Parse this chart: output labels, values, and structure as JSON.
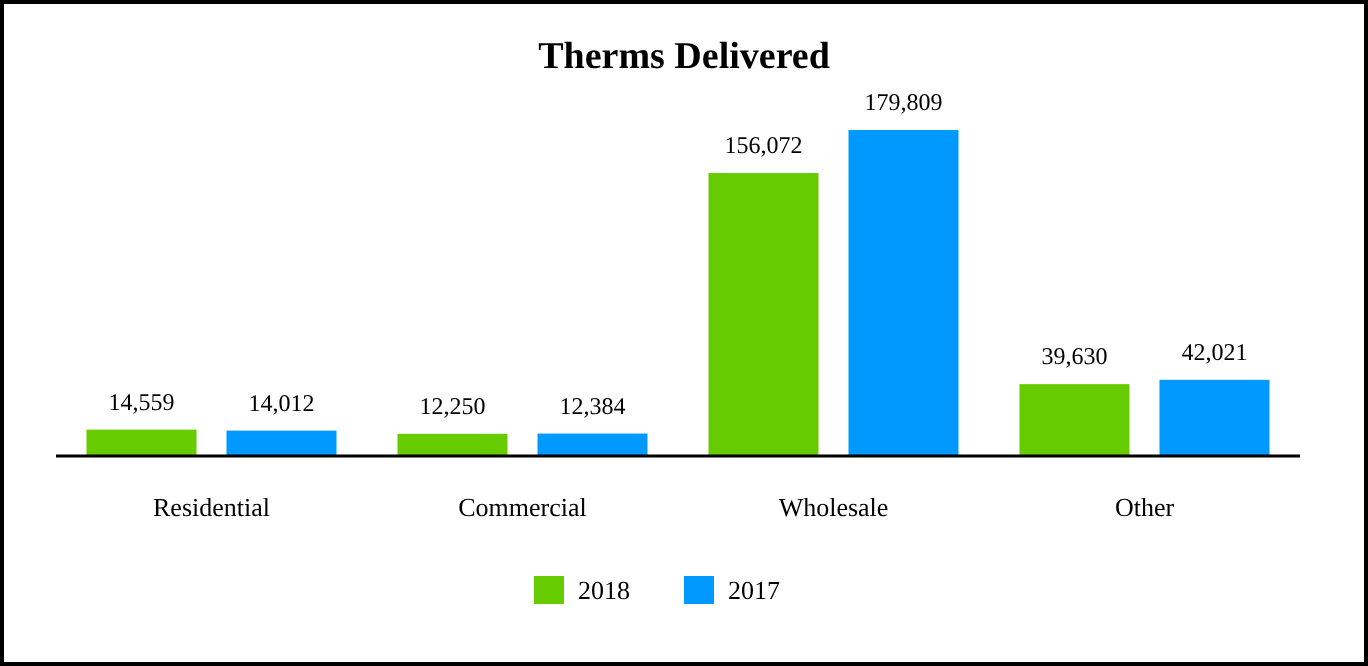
{
  "chart_data": {
    "type": "bar",
    "title": "Therms Delivered",
    "categories": [
      "Residential",
      "Commercial",
      "Wholesale",
      "Other"
    ],
    "series": [
      {
        "name": "2018",
        "color": "#66cc00",
        "values": [
          14559,
          12250,
          156072,
          39630
        ],
        "value_labels": [
          "14,559",
          "12,250",
          "156,072",
          "39,630"
        ]
      },
      {
        "name": "2017",
        "color": "#0099ff",
        "values": [
          14012,
          12384,
          179809,
          42021
        ],
        "value_labels": [
          "14,012",
          "12,384",
          "179,809",
          "42,021"
        ]
      }
    ],
    "legend": "bottom",
    "grid": false
  }
}
